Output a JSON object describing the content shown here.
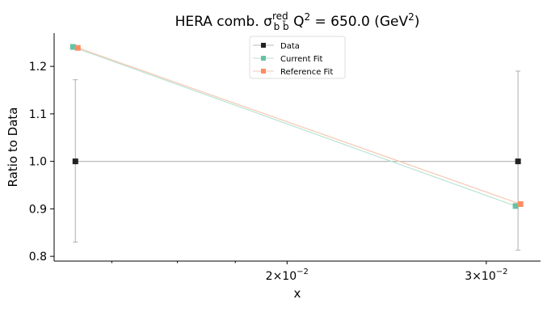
{
  "chart_data": {
    "type": "line",
    "title_main": "HERA comb. σ",
    "title_sup": "red",
    "title_sub": "b b̄",
    "title_q": "Q",
    "title_q_sup": "2",
    "title_value": " = 650.0 (GeV",
    "title_gev_sup": "2",
    "title_close": ")",
    "xlabel": "x",
    "ylabel": "Ratio to Data",
    "xscale": "log",
    "x": [
      0.013,
      0.032
    ],
    "xlim": [
      0.01245,
      0.0335
    ],
    "ylim": [
      0.79,
      1.27
    ],
    "yticks": [
      0.8,
      0.9,
      1.0,
      1.1,
      1.2
    ],
    "ytick_labels": [
      "0.8",
      "0.9",
      "1.0",
      "1.1",
      "1.2"
    ],
    "xticks": [
      {
        "value": 0.02,
        "mantissa": "2",
        "times": "×",
        "base": "10",
        "exp": "−2"
      },
      {
        "value": 0.03,
        "mantissa": "3",
        "times": "×",
        "base": "10",
        "exp": "−2"
      }
    ],
    "grid": false,
    "legend_position": "top-center",
    "series": [
      {
        "name": "Data",
        "values": [
          1.0,
          1.0
        ],
        "err_low": [
          0.83,
          0.813
        ],
        "err_high": [
          1.172,
          1.19
        ],
        "color": "#222222",
        "line_color": "#bbbbbb",
        "marker": "square"
      },
      {
        "name": "Current Fit",
        "values": [
          1.241,
          0.906
        ],
        "color": "#66c2a5",
        "line_color": "#b7e3d4",
        "marker": "square"
      },
      {
        "name": "Reference Fit",
        "values": [
          1.239,
          0.91
        ],
        "color": "#fc8d62",
        "line_color": "#f6c7b2",
        "marker": "square"
      }
    ]
  }
}
